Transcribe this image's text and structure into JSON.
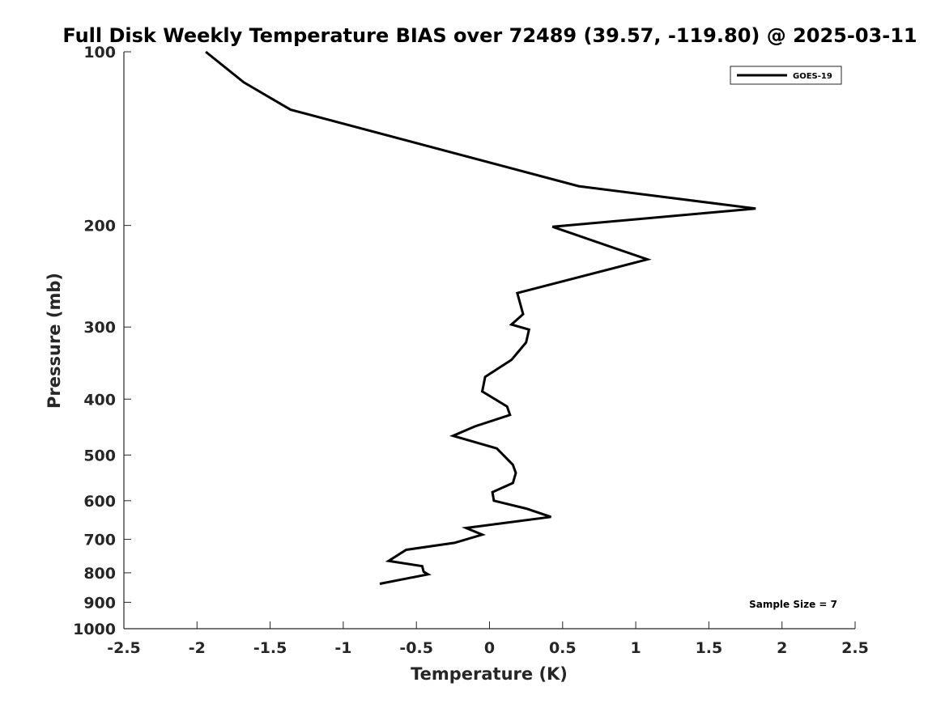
{
  "chart_data": {
    "type": "line",
    "title": "Full Disk Weekly Temperature BIAS over 72489 (39.57, -119.80) @ 2025-03-11",
    "xlabel": "Temperature (K)",
    "ylabel": "Pressure (mb)",
    "xlim": [
      -2.5,
      2.5
    ],
    "ylim": [
      100,
      1000
    ],
    "y_scale": "log",
    "y_reversed": true,
    "grid": false,
    "legend_position": "top-right",
    "x_ticks": [
      "-2.5",
      "-2",
      "-1.5",
      "-1",
      "-0.5",
      "0",
      "0.5",
      "1",
      "1.5",
      "2",
      "2.5"
    ],
    "y_ticks": [
      "100",
      "200",
      "300",
      "400",
      "500",
      "600",
      "700",
      "800",
      "900",
      "1000"
    ],
    "annotation": "Sample Size = 7",
    "series": [
      {
        "name": "GOES-19",
        "color": "#000000",
        "x": [
          -1.94,
          -1.68,
          -1.36,
          0.61,
          1.82,
          0.43,
          1.08,
          0.19,
          0.23,
          0.15,
          0.27,
          0.25,
          0.15,
          -0.03,
          -0.05,
          0.12,
          0.14,
          -0.1,
          -0.25,
          0.05,
          0.16,
          0.18,
          0.16,
          0.02,
          0.03,
          0.25,
          0.42,
          -0.16,
          -0.05,
          -0.24,
          -0.57,
          -0.69,
          -0.46,
          -0.45,
          -0.42,
          -0.75
        ],
        "y": [
          100,
          113,
          126,
          171,
          187,
          201,
          229,
          262,
          285,
          297,
          303,
          319,
          342,
          366,
          388,
          412,
          426,
          446,
          463,
          487,
          520,
          537,
          559,
          580,
          600,
          619,
          640,
          669,
          687,
          710,
          730,
          763,
          779,
          797,
          805,
          836
        ]
      }
    ]
  }
}
